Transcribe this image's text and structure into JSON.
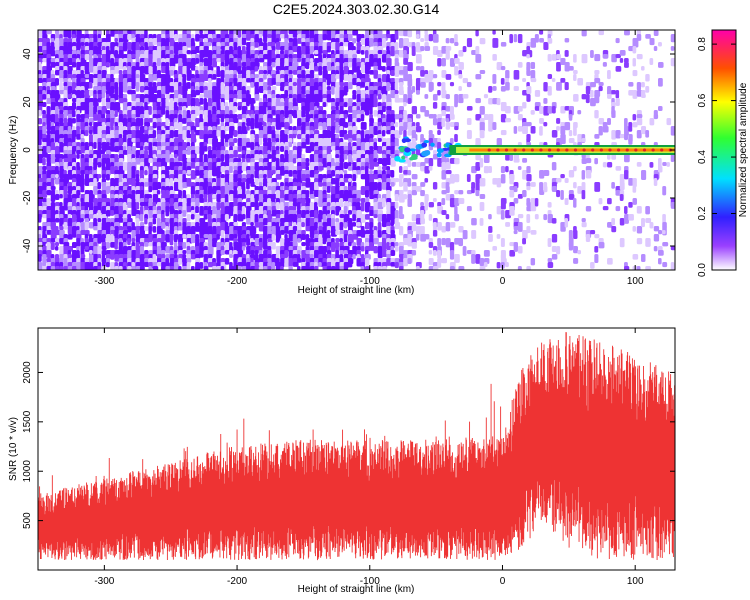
{
  "title": "C2E5.2024.303.02.30.G14",
  "spectrogram": {
    "chart_data": {
      "type": "heatmap",
      "xlabel": "Height of straight line (km)",
      "ylabel": "Frequency (Hz)",
      "xlim": [
        -350,
        130
      ],
      "ylim": [
        -50,
        50
      ],
      "xticks": [
        -300,
        -200,
        -100,
        0,
        100
      ],
      "yticks": [
        -40,
        -20,
        0,
        20,
        40
      ],
      "colorbar": {
        "label": "Normalized spectral amplitude",
        "range": [
          0,
          0.85
        ],
        "ticks": [
          "0.0",
          "0.2",
          "0.4",
          "0.6",
          "0.8"
        ]
      },
      "description_values": {
        "noise_to_signal_transition_km": -80,
        "line_frequency_hz": 0,
        "line_start_km": -30,
        "line_end_km": 130,
        "peak_amplitude": 0.8
      }
    }
  },
  "snr": {
    "chart_data": {
      "type": "area",
      "xlabel": "Height of straight line (km)",
      "ylabel": "SNR (10 * v/v)",
      "xlim": [
        -350,
        130
      ],
      "ylim": [
        0,
        2450
      ],
      "xticks": [
        -300,
        -200,
        -100,
        0,
        100
      ],
      "yticks": [
        500,
        1000,
        1500,
        2000
      ],
      "color": "#ee3333",
      "envelope": {
        "x": [
          -350,
          -300,
          -250,
          -200,
          -150,
          -100,
          -50,
          0,
          15,
          30,
          50,
          75,
          100,
          130
        ],
        "low": [
          100,
          100,
          100,
          100,
          100,
          100,
          100,
          100,
          200,
          500,
          200,
          100,
          100,
          100
        ],
        "high": [
          700,
          850,
          1000,
          1150,
          1200,
          1200,
          1200,
          1250,
          1900,
          2100,
          2200,
          2100,
          2000,
          1800
        ],
        "peak": [
          1000,
          1150,
          1250,
          1650,
          1500,
          1450,
          1450,
          2000,
          2100,
          2300,
          2450,
          2300,
          2350,
          2100
        ]
      }
    }
  }
}
